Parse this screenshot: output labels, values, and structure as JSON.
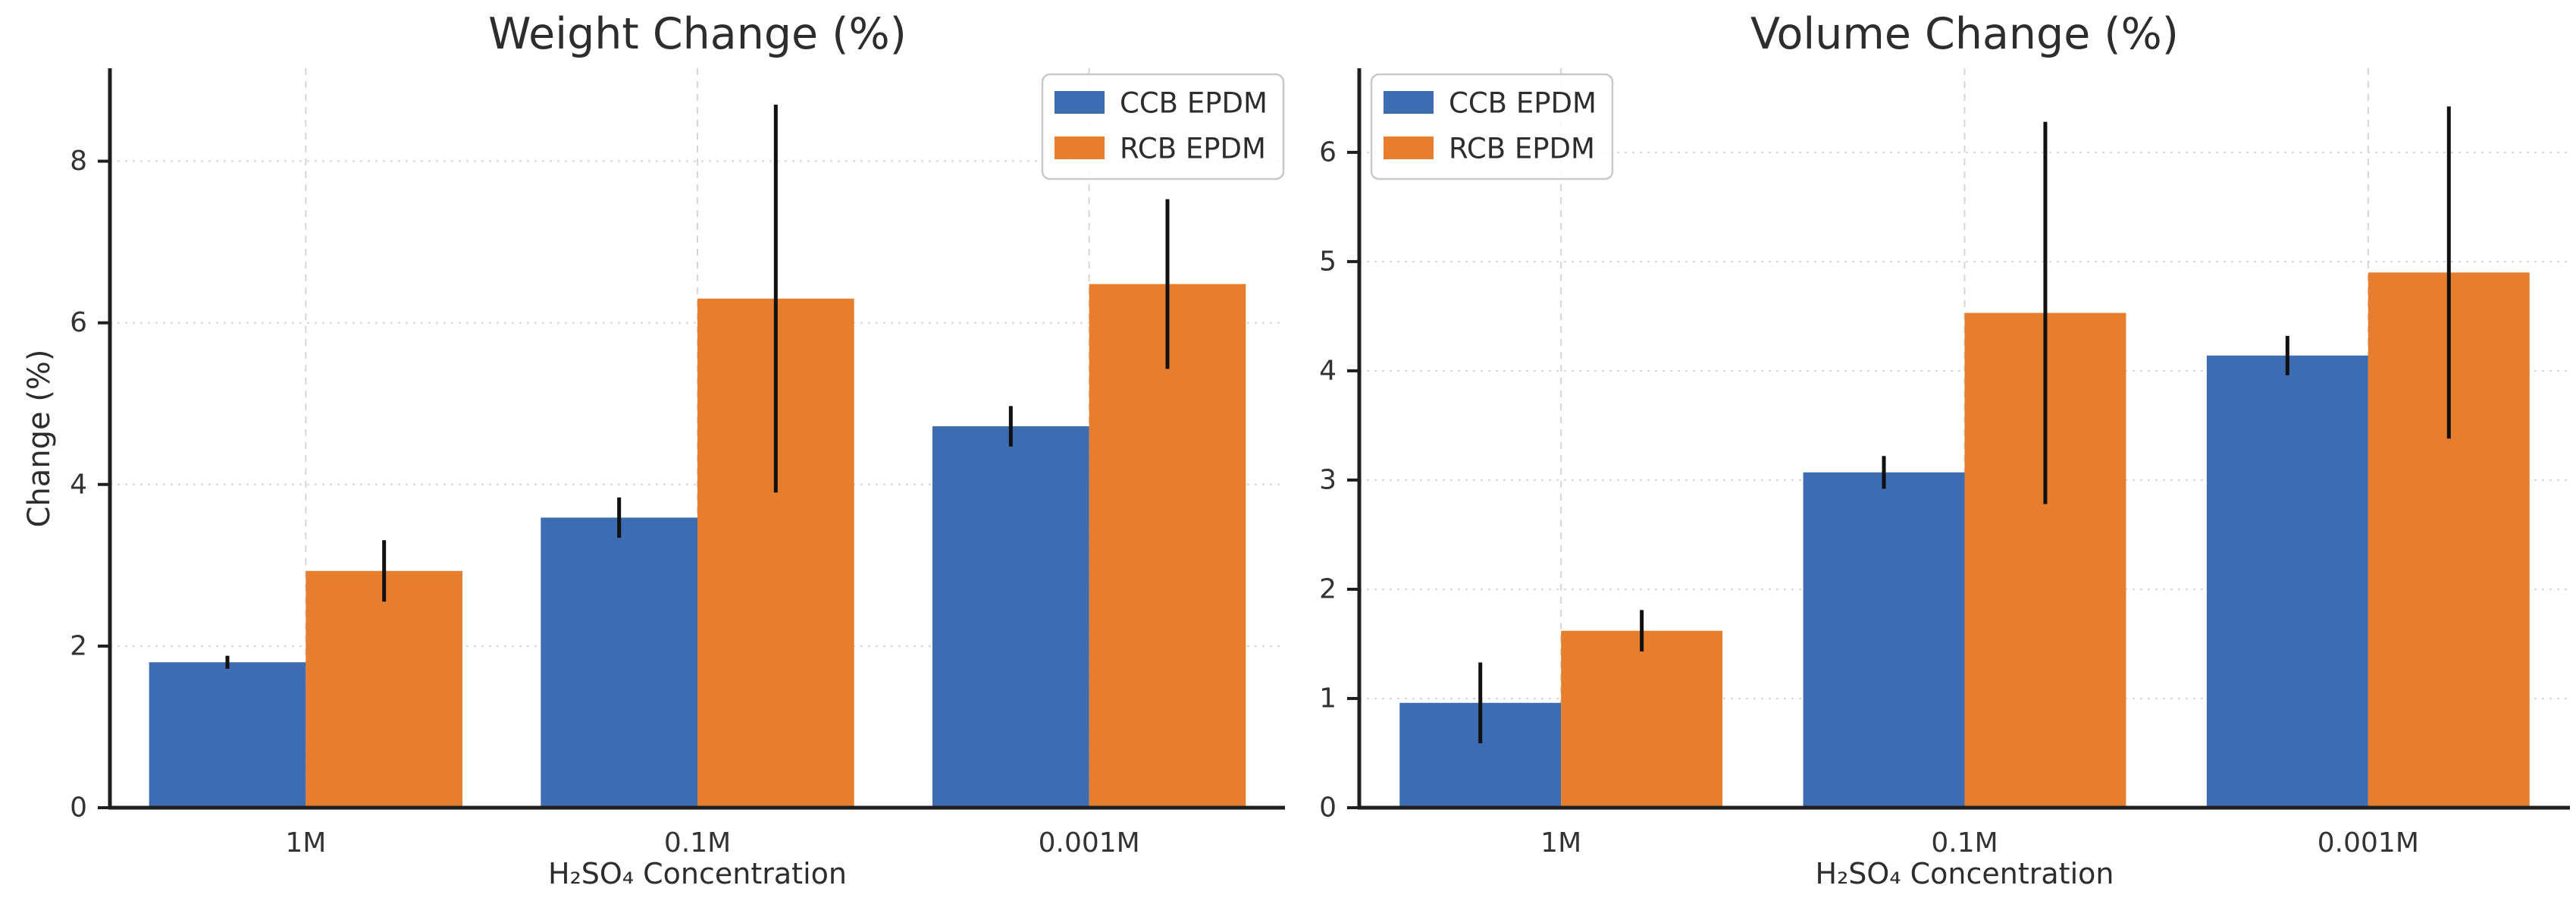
{
  "figure": {
    "background": "#ffffff",
    "text_color": "#2d2d2d",
    "axis_color": "#1f1f1f",
    "grid_color": "#d6d6d6",
    "error_bar_color": "#111111",
    "legend_border_color": "#c9c9c9",
    "legend_fill": "rgba(255,255,255,0.85)"
  },
  "chart_data": [
    {
      "type": "bar",
      "title": "Weight Change (%)",
      "xlabel": "H₂SO₄ Concentration",
      "ylabel": "Change (%)",
      "categories": [
        "1M",
        "0.1M",
        "0.001M"
      ],
      "series": [
        {
          "name": "CCB EPDM",
          "color": "#3E6CB3",
          "values": [
            1.8,
            3.59,
            4.72
          ],
          "errors": [
            0.08,
            0.25,
            0.25
          ]
        },
        {
          "name": "RCB EPDM",
          "color": "#E67E2E",
          "values": [
            2.93,
            6.3,
            6.48
          ],
          "errors": [
            0.38,
            2.4,
            1.05
          ]
        }
      ],
      "ylim": [
        0,
        9.15
      ],
      "yticks": [
        0,
        2,
        4,
        6,
        8
      ],
      "grid": true,
      "error_bars": true,
      "legend_position": "upper right"
    },
    {
      "type": "bar",
      "title": "Volume Change (%)",
      "xlabel": "H₂SO₄ Concentration",
      "ylabel": "",
      "categories": [
        "1M",
        "0.1M",
        "0.001M"
      ],
      "series": [
        {
          "name": "CCB EPDM",
          "color": "#3E6CB3",
          "values": [
            0.96,
            3.07,
            4.14
          ],
          "errors": [
            0.37,
            0.15,
            0.18
          ]
        },
        {
          "name": "RCB EPDM",
          "color": "#E67E2E",
          "values": [
            1.62,
            4.53,
            4.9
          ],
          "errors": [
            0.19,
            1.75,
            1.52
          ]
        }
      ],
      "ylim": [
        0,
        6.77
      ],
      "yticks": [
        0,
        1,
        2,
        3,
        4,
        5,
        6
      ],
      "grid": true,
      "error_bars": true,
      "legend_position": "upper left"
    }
  ]
}
